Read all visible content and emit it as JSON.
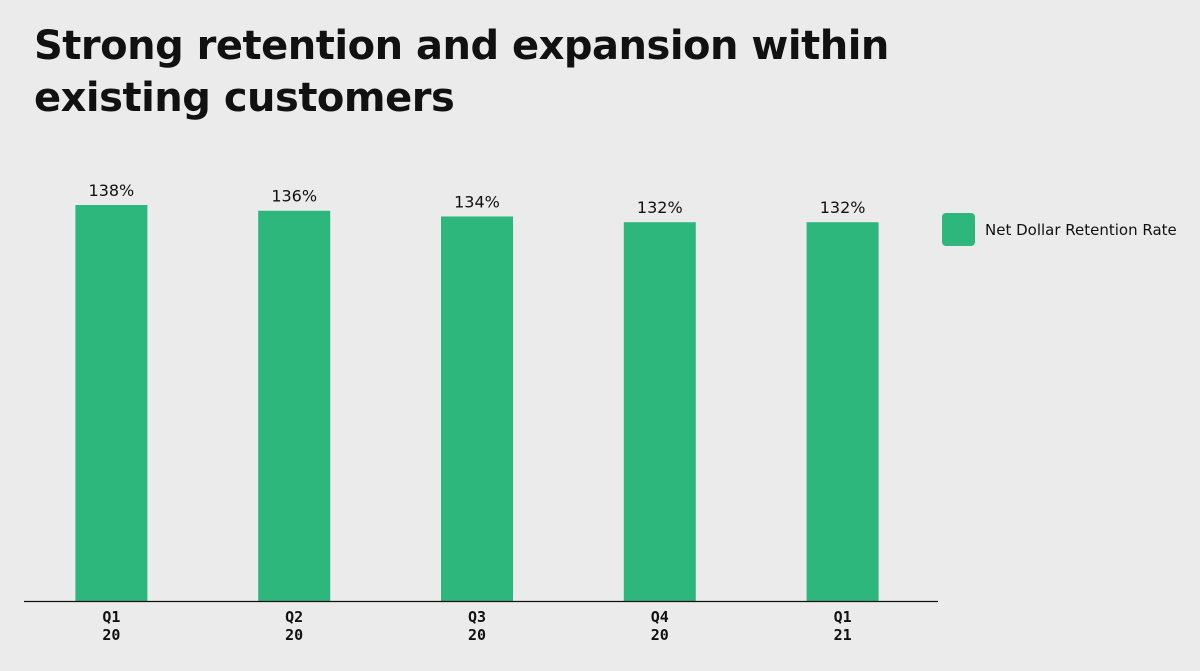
{
  "title": "Strong retention and expansion within existing customers",
  "colors": {
    "bar": "#2eb77c",
    "axis": "#111111",
    "background": "#ebebeb"
  },
  "chart_data": {
    "type": "bar",
    "categories": [
      [
        "Q1",
        "20"
      ],
      [
        "Q2",
        "20"
      ],
      [
        "Q3",
        "20"
      ],
      [
        "Q4",
        "20"
      ],
      [
        "Q1",
        "21"
      ]
    ],
    "series": [
      {
        "name": "Net Dollar Retention Rate",
        "values": [
          138,
          136,
          134,
          132,
          132
        ]
      }
    ],
    "value_labels": [
      "138%",
      "136%",
      "134%",
      "132%",
      "132%"
    ],
    "ylim": [
      0,
      140
    ],
    "xlabel": "",
    "ylabel": "",
    "grid": false,
    "legend_position": "right"
  }
}
